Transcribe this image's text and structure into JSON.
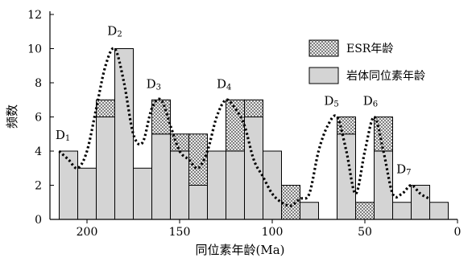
{
  "chart_data": {
    "type": "bar",
    "stacked": true,
    "bin_width": 10,
    "xlabel": "同位素年龄(Ma)",
    "ylabel": "频数",
    "xlim": [
      220,
      0
    ],
    "ylim": [
      0,
      12
    ],
    "xticks": [
      200,
      150,
      100,
      50,
      0
    ],
    "yticks": [
      0,
      2,
      4,
      6,
      8,
      10,
      12
    ],
    "grid": false,
    "legend_position": "top-right",
    "bin_start_ages": [
      215,
      205,
      195,
      185,
      175,
      165,
      155,
      145,
      135,
      125,
      115,
      105,
      95,
      85,
      75,
      65,
      55,
      45,
      35,
      25,
      15
    ],
    "series": [
      {
        "name": "岩体同位素年龄",
        "color": "#d4d4d4",
        "pattern": "solid",
        "values": [
          4,
          3,
          6,
          10,
          3,
          5,
          4,
          2,
          4,
          4,
          6,
          4,
          0,
          1,
          0,
          5,
          0,
          4,
          1,
          2,
          1
        ]
      },
      {
        "name": "ESR年龄",
        "color": "#ffffff",
        "pattern": "crosshatch",
        "values": [
          0,
          0,
          1,
          0,
          0,
          2,
          1,
          3,
          0,
          3,
          1,
          0,
          2,
          0,
          0,
          1,
          1,
          2,
          0,
          0,
          0
        ]
      }
    ],
    "trend_line": {
      "style": "dotted",
      "x": [
        215,
        210,
        205,
        200,
        195,
        190,
        185,
        180,
        175,
        170,
        165,
        160,
        155,
        150,
        145,
        140,
        135,
        130,
        125,
        120,
        115,
        110,
        105,
        100,
        95,
        90,
        85,
        80,
        75,
        70,
        65,
        60,
        55,
        50,
        45,
        40,
        35,
        30,
        25,
        20,
        15
      ],
      "y": [
        4,
        3.5,
        3,
        4,
        6.5,
        9,
        10,
        8,
        5,
        4.5,
        6.5,
        7,
        5.5,
        4,
        3.5,
        3,
        4,
        6,
        7,
        6.5,
        5.5,
        3.5,
        2.5,
        1.5,
        1,
        0.8,
        1.2,
        1.5,
        4,
        5.5,
        6,
        4,
        1.5,
        4,
        6,
        4,
        1.5,
        1.5,
        2,
        1.5,
        1.2
      ]
    },
    "peak_labels": [
      {
        "main": "D",
        "sub": "1",
        "x": 213,
        "y": 4.7
      },
      {
        "main": "D",
        "sub": "2",
        "x": 185,
        "y": 10.8
      },
      {
        "main": "D",
        "sub": "3",
        "x": 164,
        "y": 7.7
      },
      {
        "main": "D",
        "sub": "4",
        "x": 126,
        "y": 7.7
      },
      {
        "main": "D",
        "sub": "5",
        "x": 68,
        "y": 6.7
      },
      {
        "main": "D",
        "sub": "6",
        "x": 47,
        "y": 6.7
      },
      {
        "main": "D",
        "sub": "7",
        "x": 29,
        "y": 2.7
      }
    ]
  }
}
